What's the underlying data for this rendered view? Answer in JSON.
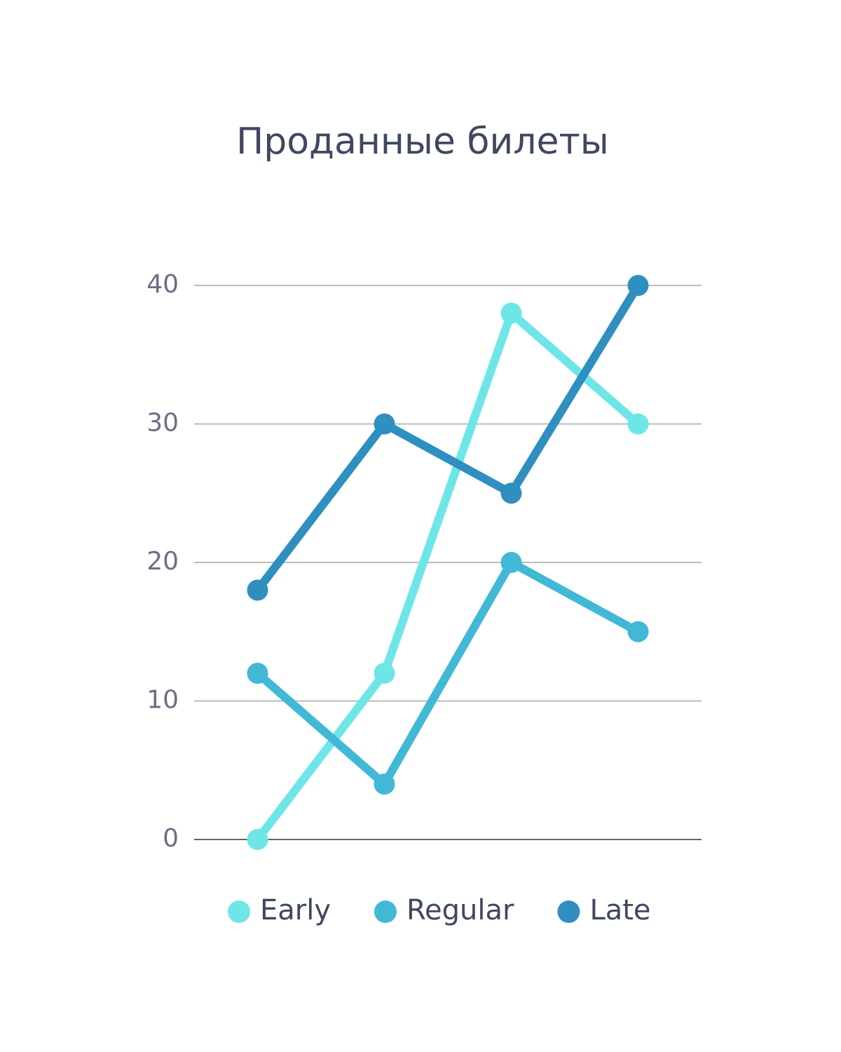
{
  "chart_data": {
    "type": "line",
    "title": "Проданные билеты",
    "categories": [
      null,
      null,
      null,
      null
    ],
    "series": [
      {
        "name": "Early",
        "color": "#6ee6e8",
        "values": [
          0,
          12,
          38,
          30
        ]
      },
      {
        "name": "Regular",
        "color": "#41b8d6",
        "values": [
          12,
          4,
          20,
          15
        ]
      },
      {
        "name": "Late",
        "color": "#2f8fc0",
        "values": [
          18,
          30,
          25,
          40
        ]
      }
    ],
    "ylim": [
      0,
      40
    ],
    "yticks": [
      0,
      10,
      20,
      30,
      40
    ],
    "grid": true,
    "legend": "bottom"
  }
}
